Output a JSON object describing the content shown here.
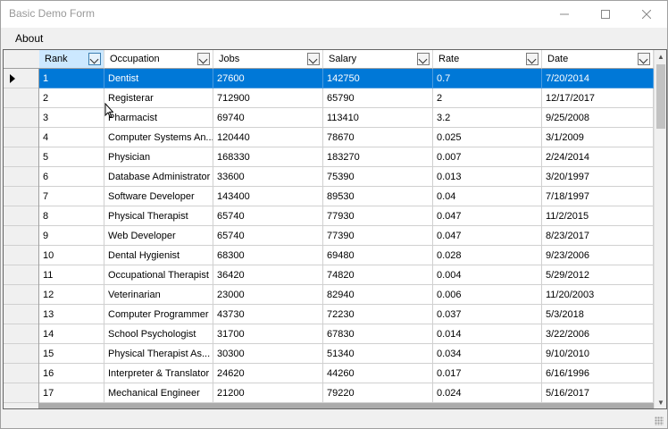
{
  "window": {
    "title": "Basic Demo Form"
  },
  "menu": {
    "items": [
      "About"
    ]
  },
  "grid": {
    "columns": [
      "Rank",
      "Occupation",
      "Jobs",
      "Salary",
      "Rate",
      "Date"
    ],
    "active_column": "Rank",
    "selected_row": 0,
    "rows": [
      [
        "1",
        "Dentist",
        "27600",
        "142750",
        "0.7",
        "7/20/2014"
      ],
      [
        "2",
        "Registerar",
        "712900",
        "65790",
        "2",
        "12/17/2017"
      ],
      [
        "3",
        "Pharmacist",
        "69740",
        "113410",
        "3.2",
        "9/25/2008"
      ],
      [
        "4",
        "Computer Systems An...",
        "120440",
        "78670",
        "0.025",
        "3/1/2009"
      ],
      [
        "5",
        "Physician",
        "168330",
        "183270",
        "0.007",
        "2/24/2014"
      ],
      [
        "6",
        "Database Administrator",
        "33600",
        "75390",
        "0.013",
        "3/20/1997"
      ],
      [
        "7",
        "Software Developer",
        "143400",
        "89530",
        "0.04",
        "7/18/1997"
      ],
      [
        "8",
        "Physical Therapist",
        "65740",
        "77930",
        "0.047",
        "11/2/2015"
      ],
      [
        "9",
        "Web Developer",
        "65740",
        "77390",
        "0.047",
        "8/23/2017"
      ],
      [
        "10",
        "Dental Hygienist",
        "68300",
        "69480",
        "0.028",
        "9/23/2006"
      ],
      [
        "11",
        "Occupational Therapist",
        "36420",
        "74820",
        "0.004",
        "5/29/2012"
      ],
      [
        "12",
        "Veterinarian",
        "23000",
        "82940",
        "0.006",
        "11/20/2003"
      ],
      [
        "13",
        "Computer Programmer",
        "43730",
        "72230",
        "0.037",
        "5/3/2018"
      ],
      [
        "14",
        "School Psychologist",
        "31700",
        "67830",
        "0.014",
        "3/22/2006"
      ],
      [
        "15",
        "Physical Therapist As...",
        "30300",
        "51340",
        "0.034",
        "9/10/2010"
      ],
      [
        "16",
        "Interpreter & Translator",
        "24620",
        "44260",
        "0.017",
        "6/16/1996"
      ],
      [
        "17",
        "Mechanical Engineer",
        "21200",
        "79220",
        "0.024",
        "5/16/2017"
      ]
    ]
  },
  "colors": {
    "selection": "#0078d7",
    "active_header": "#cce8ff"
  },
  "icons": {
    "minimize": "minimize-icon",
    "maximize": "maximize-icon",
    "close": "close-icon",
    "dropdown": "chevron-down-icon",
    "row_indicator": "current-row-arrow-icon"
  }
}
